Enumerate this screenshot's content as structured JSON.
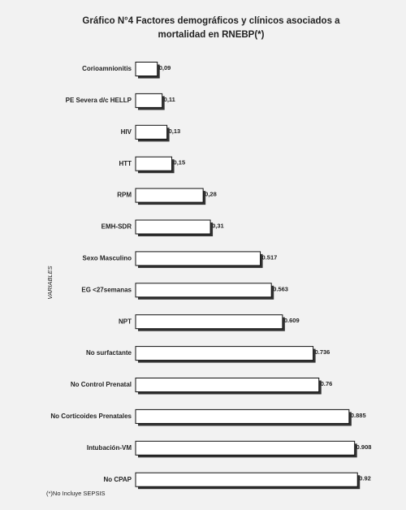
{
  "chart_data": {
    "type": "bar",
    "orientation": "horizontal",
    "title": "Gráfico N°4 Factores demográficos y clínicos asociados a mortalidad en RNEBP(*)",
    "y_label": "VARIABLES",
    "footnote": "(*)No Incluye SEPSIS",
    "categories": [
      "Corioamnionitis",
      "PE Severa d/c HELLP",
      "HIV",
      "HTT",
      "RPM",
      "EMH-SDR",
      "Sexo Masculino",
      "EG <27semanas",
      "NPT",
      "No surfactante",
      "No Control Prenatal",
      "No Corticoides Prenatales",
      "Intubación-VM",
      "No CPAP"
    ],
    "values": [
      0.09,
      0.11,
      0.13,
      0.15,
      0.28,
      0.31,
      0.517,
      0.563,
      0.609,
      0.736,
      0.76,
      0.885,
      0.908,
      0.92
    ],
    "value_labels": [
      "0,09",
      "0,11",
      "0,13",
      "0,15",
      "0,28",
      "0,31",
      "0.517",
      "0.563",
      "0.609",
      "0.736",
      "0.76",
      "0.885",
      "0.908",
      "0.92"
    ],
    "color": "#ffffff"
  }
}
